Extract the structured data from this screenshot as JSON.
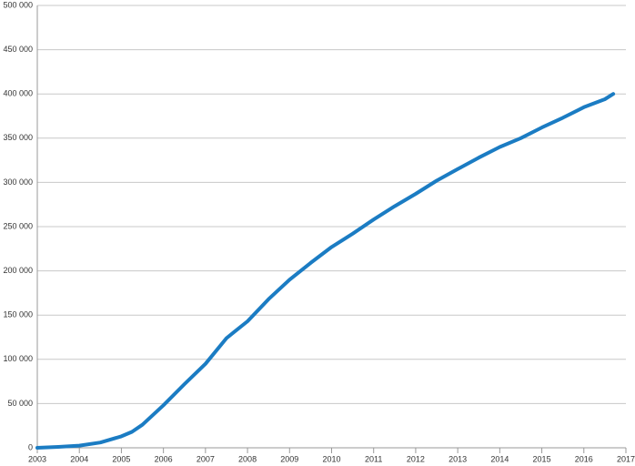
{
  "chart_data": {
    "type": "line",
    "x": [
      2003,
      2003.5,
      2004,
      2004.5,
      2005,
      2005.25,
      2005.5,
      2006,
      2006.5,
      2007,
      2007.5,
      2008,
      2008.5,
      2009,
      2009.5,
      2010,
      2010.5,
      2011,
      2011.5,
      2012,
      2012.5,
      2013,
      2013.5,
      2014,
      2014.5,
      2015,
      2015.5,
      2016,
      2016.5,
      2016.7
    ],
    "series": [
      {
        "color": "#1b7cc3",
        "values": [
          0,
          1000,
          2500,
          6000,
          13000,
          18000,
          26000,
          48000,
          72000,
          95000,
          124000,
          143000,
          168000,
          190000,
          209000,
          227000,
          242000,
          258000,
          273000,
          287000,
          302000,
          315000,
          328000,
          340000,
          350000,
          362000,
          373000,
          385000,
          394000,
          400000
        ]
      }
    ],
    "xlim": [
      2003,
      2017
    ],
    "xticks": [
      2003,
      2004,
      2005,
      2006,
      2007,
      2008,
      2009,
      2010,
      2011,
      2012,
      2013,
      2014,
      2015,
      2016,
      2017
    ],
    "ylim": [
      0,
      500000
    ],
    "yticks": [
      0,
      {
        "value": 50000,
        "label": "50 000"
      },
      {
        "value": 100000,
        "label": "100 000"
      },
      {
        "value": 150000,
        "label": "150 000"
      },
      {
        "value": 200000,
        "label": "200 000"
      },
      {
        "value": 250000,
        "label": "250 000"
      },
      {
        "value": 300000,
        "label": "300 000"
      },
      {
        "value": 350000,
        "label": "350 000"
      },
      {
        "value": 400000,
        "label": "400 000"
      },
      {
        "value": 450000,
        "label": "450 000"
      },
      {
        "value": 500000,
        "label": "500 000"
      }
    ],
    "grid": true
  }
}
